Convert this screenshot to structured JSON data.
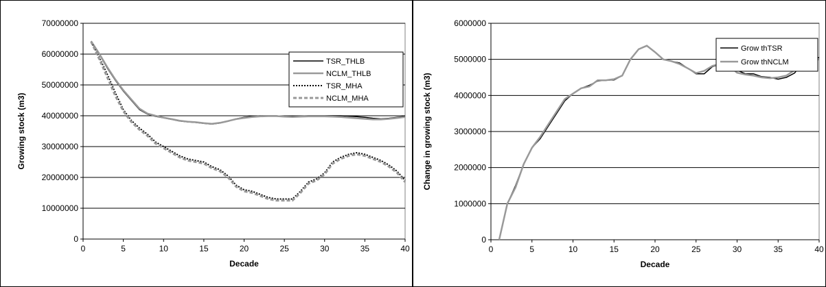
{
  "chart_data": [
    {
      "type": "line",
      "xlabel": "Decade",
      "ylabel": "Growing stock (m3)",
      "xlim": [
        0,
        40
      ],
      "ylim": [
        0,
        70000000
      ],
      "x_ticks": [
        "0",
        "5",
        "10",
        "15",
        "20",
        "25",
        "30",
        "35",
        "40"
      ],
      "y_ticks": [
        "0",
        "10000000",
        "20000000",
        "30000000",
        "40000000",
        "50000000",
        "60000000",
        "70000000"
      ],
      "grid": "horizontal",
      "legend_position": "right",
      "x": [
        1,
        2,
        3,
        4,
        5,
        6,
        7,
        8,
        9,
        10,
        11,
        12,
        13,
        14,
        15,
        16,
        17,
        18,
        19,
        20,
        21,
        22,
        23,
        24,
        25,
        26,
        27,
        28,
        29,
        30,
        31,
        32,
        33,
        34,
        35,
        36,
        37,
        38,
        39,
        40
      ],
      "series": [
        {
          "name": "TSR_THLB",
          "color": "#000000",
          "style": "solid",
          "values": [
            64000000,
            60000000,
            55500000,
            51500000,
            48000000,
            45000000,
            42000000,
            40500000,
            39800000,
            39300000,
            38800000,
            38300000,
            38000000,
            37800000,
            37500000,
            37300000,
            37600000,
            38200000,
            39000000,
            39500000,
            39800000,
            40000000,
            40000000,
            40000000,
            39800000,
            39800000,
            39900000,
            40000000,
            40000000,
            40000000,
            40000000,
            40000000,
            39900000,
            39700000,
            39500000,
            39200000,
            39000000,
            39200000,
            39500000,
            39800000
          ]
        },
        {
          "name": "NCLM_THLB",
          "color": "#999999",
          "style": "solid",
          "values": [
            64200000,
            60200000,
            55800000,
            51800000,
            48300000,
            45300000,
            42300000,
            40700000,
            40000000,
            39400000,
            38900000,
            38400000,
            38100000,
            37900000,
            37600000,
            37400000,
            37700000,
            38300000,
            38900000,
            39300000,
            39600000,
            39800000,
            39900000,
            39900000,
            39700000,
            39600000,
            39700000,
            39800000,
            39800000,
            39800000,
            39700000,
            39600000,
            39400000,
            39200000,
            39000000,
            38800000,
            38800000,
            39000000,
            39300000,
            39600000
          ]
        },
        {
          "name": "TSR_MHA",
          "color": "#000000",
          "style": "dotted",
          "values": [
            64000000,
            59000000,
            53500000,
            47500000,
            42000000,
            38500000,
            36000000,
            34000000,
            31500000,
            30000000,
            28500000,
            27000000,
            26000000,
            25500000,
            25000000,
            23500000,
            22500000,
            20500000,
            17500000,
            16000000,
            15500000,
            14500000,
            13500000,
            13000000,
            13000000,
            13000000,
            15500000,
            18500000,
            19500000,
            21500000,
            25000000,
            26500000,
            27500000,
            28000000,
            27500000,
            26500000,
            25500000,
            24000000,
            22000000,
            19000000
          ]
        },
        {
          "name": "NCLM_MHA",
          "color": "#999999",
          "style": "dashed",
          "values": [
            64000000,
            58500000,
            52500000,
            46500000,
            41500000,
            38000000,
            35500000,
            33500000,
            31000000,
            29500000,
            28000000,
            26500000,
            25500000,
            25000000,
            24500000,
            23000000,
            22000000,
            20000000,
            17000000,
            15500000,
            15000000,
            14000000,
            13000000,
            12500000,
            12500000,
            12500000,
            15000000,
            18000000,
            19000000,
            21000000,
            24500000,
            26000000,
            27000000,
            27500000,
            27000000,
            26000000,
            25000000,
            23500000,
            21500000,
            18500000
          ]
        }
      ]
    },
    {
      "type": "line",
      "xlabel": "Decade",
      "ylabel": "Change in growing stock (m3)",
      "xlim": [
        0,
        40
      ],
      "ylim": [
        0,
        6000000
      ],
      "x_ticks": [
        "0",
        "5",
        "10",
        "15",
        "20",
        "25",
        "30",
        "35",
        "40"
      ],
      "y_ticks": [
        "0",
        "1000000",
        "2000000",
        "3000000",
        "4000000",
        "5000000",
        "6000000"
      ],
      "grid": "horizontal",
      "legend_position": "top-right",
      "x": [
        1,
        2,
        3,
        4,
        5,
        6,
        7,
        8,
        9,
        10,
        11,
        12,
        13,
        14,
        15,
        16,
        17,
        18,
        19,
        20,
        21,
        22,
        23,
        24,
        25,
        26,
        27,
        28,
        29,
        30,
        31,
        32,
        33,
        34,
        35,
        36,
        37,
        38,
        39,
        40
      ],
      "series": [
        {
          "name": "Grow thTSR",
          "color": "#000000",
          "style": "solid",
          "values": [
            0,
            1000000,
            1500000,
            2100000,
            2550000,
            2800000,
            3150000,
            3500000,
            3850000,
            4050000,
            4200000,
            4280000,
            4400000,
            4420000,
            4430000,
            4550000,
            5000000,
            5280000,
            5370000,
            5200000,
            5000000,
            4950000,
            4900000,
            4750000,
            4600000,
            4600000,
            4800000,
            4870000,
            4820000,
            4700000,
            4600000,
            4600000,
            4520000,
            4500000,
            4450000,
            4500000,
            4620000,
            4900000,
            5000000,
            5050000
          ]
        },
        {
          "name": "Grow thNCLM",
          "color": "#999999",
          "style": "solid",
          "values": [
            0,
            1000000,
            1450000,
            2100000,
            2550000,
            2850000,
            3200000,
            3550000,
            3900000,
            4050000,
            4200000,
            4250000,
            4420000,
            4420000,
            4450000,
            4550000,
            5000000,
            5280000,
            5380000,
            5200000,
            5000000,
            4950000,
            4870000,
            4750000,
            4620000,
            4680000,
            4820000,
            4880000,
            4820000,
            4630000,
            4580000,
            4550000,
            4500000,
            4480000,
            4500000,
            4550000,
            4700000,
            4850000,
            4950000,
            5000000
          ]
        }
      ]
    }
  ]
}
